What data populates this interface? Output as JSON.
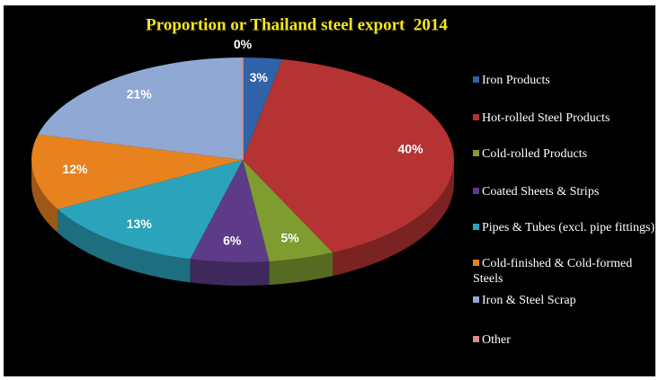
{
  "chart_data": {
    "type": "pie",
    "title": "Proportion or Thailand steel export  2014",
    "categories": [
      "Iron Products",
      "Hot-rolled Steel Products",
      "Cold-rolled Products",
      "Coated Sheets & Strips",
      "Pipes & Tubes (excl. pipe fittings)",
      "Cold-finished & Cold-formed Steels",
      "Iron & Steel Scrap",
      "Other"
    ],
    "values": [
      3,
      40,
      5,
      6,
      13,
      12,
      21,
      0
    ],
    "value_labels": [
      "3%",
      "40%",
      "5%",
      "6%",
      "13%",
      "12%",
      "21%",
      "0%"
    ],
    "colors": [
      "#2f62a8",
      "#b53333",
      "#7e9c30",
      "#5d3b88",
      "#2aa3bb",
      "#e8821f",
      "#8fa8d4",
      "#d98c8c"
    ],
    "legend": "right"
  }
}
